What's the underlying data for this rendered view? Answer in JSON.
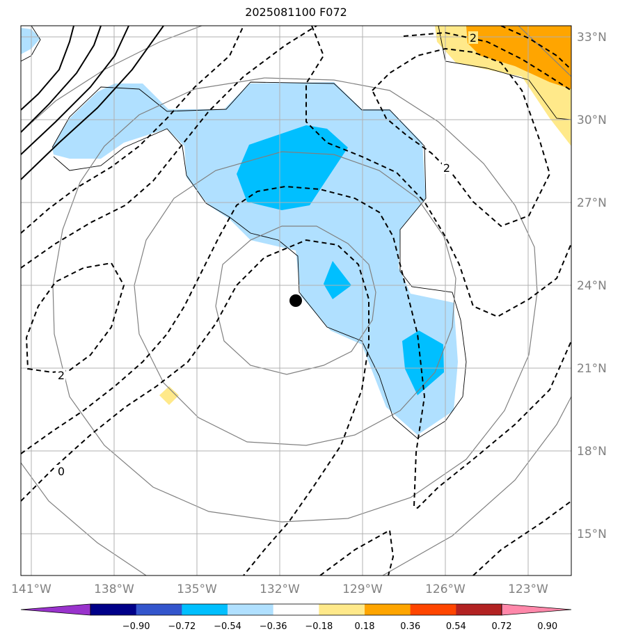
{
  "title": "2025081100 F072",
  "map": {
    "lon_range": [
      "141°W",
      "121°W"
    ],
    "lat_range": [
      "13.5°N",
      "33.5°N"
    ],
    "lon_ticks": [
      "141°W",
      "138°W",
      "135°W",
      "132°W",
      "129°W",
      "126°W",
      "123°W"
    ],
    "lat_ticks": [
      "33°N",
      "30°N",
      "27°N",
      "24°N",
      "21°N",
      "18°N",
      "15°N"
    ],
    "center_marker": {
      "lon": "131.5°W",
      "lat": "23.5°N",
      "color": "#000000"
    },
    "contour_labels": [
      {
        "text": "2",
        "lon": "124.7°W",
        "lat": "33.0°N"
      },
      {
        "text": "2",
        "lon": "125.7°W",
        "lat": "28.2°N"
      },
      {
        "text": "2",
        "lon": "139.9°W",
        "lat": "20.7°N"
      },
      {
        "text": "0",
        "lon": "139.9°W",
        "lat": "17.2°N"
      }
    ]
  },
  "colorbar": {
    "colors": [
      "#9933cc",
      "#000088",
      "#3355cc",
      "#00bfff",
      "#b0e0ff",
      "#ffffff",
      "#ffe98a",
      "#ffa500",
      "#ff4500",
      "#b22222",
      "#ff88aa"
    ],
    "labels": [
      "−0.90",
      "−0.72",
      "−0.54",
      "−0.36",
      "−0.18",
      "0.18",
      "0.36",
      "0.54",
      "0.72",
      "0.90"
    ]
  }
}
